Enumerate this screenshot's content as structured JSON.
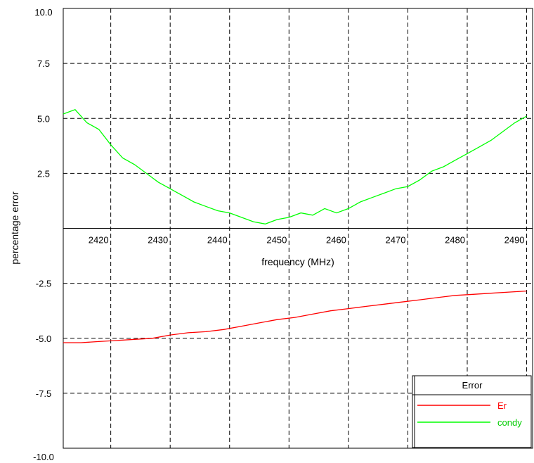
{
  "chart_data": {
    "type": "line",
    "xlabel": "frequency (MHz)",
    "ylabel": "percentage error",
    "xlim": [
      2412,
      2491
    ],
    "ylim": [
      -10,
      10
    ],
    "x_ticks": [
      2420,
      2430,
      2440,
      2450,
      2460,
      2470,
      2480,
      2490
    ],
    "y_ticks": [
      10,
      7.5,
      5,
      2.5,
      -2.5,
      -5,
      -7.5,
      -10
    ],
    "y_tick_labels": [
      "10.0",
      "7.5",
      "5.0",
      "2.5",
      "-2.5",
      "-5.0",
      "-7.5",
      "-10.0"
    ],
    "grid": true,
    "legend": {
      "title": "Error",
      "position": "bottom-right"
    },
    "series": [
      {
        "name": "Er",
        "color": "#ff0000",
        "x": [
          2412,
          2415,
          2418,
          2421,
          2424,
          2427,
          2430,
          2433,
          2436,
          2439,
          2442,
          2445,
          2448,
          2451,
          2454,
          2457,
          2460,
          2463,
          2466,
          2469,
          2472,
          2475,
          2478,
          2481,
          2484,
          2487,
          2490
        ],
        "y": [
          -5.2,
          -5.2,
          -5.15,
          -5.1,
          -5.05,
          -5.0,
          -4.85,
          -4.75,
          -4.7,
          -4.6,
          -4.45,
          -4.3,
          -4.15,
          -4.05,
          -3.9,
          -3.75,
          -3.65,
          -3.55,
          -3.45,
          -3.35,
          -3.25,
          -3.15,
          -3.05,
          -3.0,
          -2.95,
          -2.9,
          -2.85
        ]
      },
      {
        "name": "condy",
        "color": "#00ff00",
        "x": [
          2412,
          2414,
          2416,
          2418,
          2420,
          2422,
          2424,
          2426,
          2428,
          2430,
          2432,
          2434,
          2436,
          2438,
          2440,
          2442,
          2444,
          2446,
          2448,
          2450,
          2452,
          2454,
          2456,
          2458,
          2460,
          2462,
          2464,
          2466,
          2468,
          2470,
          2472,
          2474,
          2476,
          2478,
          2480,
          2482,
          2484,
          2486,
          2488,
          2490
        ],
        "y": [
          5.2,
          5.4,
          4.8,
          4.5,
          3.8,
          3.2,
          2.9,
          2.5,
          2.1,
          1.8,
          1.5,
          1.2,
          1.0,
          0.8,
          0.7,
          0.5,
          0.3,
          0.2,
          0.4,
          0.5,
          0.7,
          0.6,
          0.9,
          0.7,
          0.9,
          1.2,
          1.4,
          1.6,
          1.8,
          1.9,
          2.2,
          2.6,
          2.8,
          3.1,
          3.4,
          3.7,
          4.0,
          4.4,
          4.8,
          5.1
        ]
      }
    ]
  }
}
